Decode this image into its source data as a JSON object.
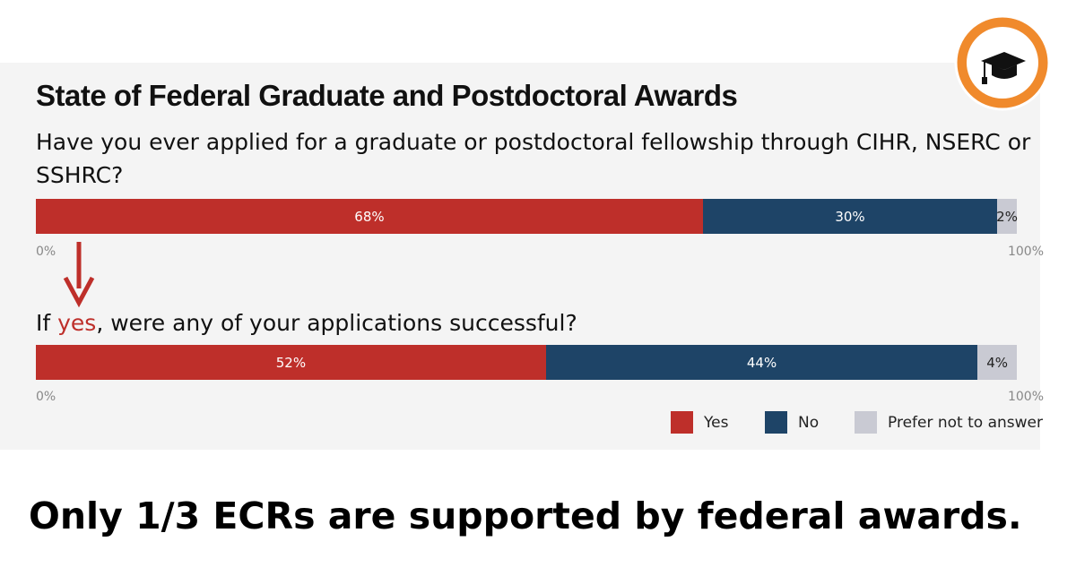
{
  "title": "State of Federal Graduate and Postdoctoral Awards",
  "caption": "Only 1/3 ECRs are supported by federal awards.",
  "chart_data": [
    {
      "type": "stacked-bar",
      "question": [
        {
          "text": "Have you ever applied for a graduate or postdoctoral fellowship through CIHR, NSERC or SSHRC?"
        }
      ],
      "series": [
        {
          "color": "#be2f2a",
          "values": [
            68
          ],
          "value_labels": [
            "68%"
          ]
        },
        {
          "color": "#1e4467",
          "values": [
            30
          ],
          "value_labels": [
            "30%"
          ]
        },
        {
          "color": "#c9cad3",
          "values": [
            2
          ],
          "value_labels": [
            "2%"
          ]
        }
      ],
      "xlim": [
        0,
        100
      ],
      "xticks": [
        {
          "value": 0,
          "label": "0%"
        },
        {
          "value": 100,
          "label": "100%"
        }
      ]
    },
    {
      "type": "stacked-bar",
      "question": [
        {
          "text": "If "
        },
        {
          "text": "yes",
          "color": "#be2f2a"
        },
        {
          "text": ", were any of your applications successful?"
        }
      ],
      "series": [
        {
          "name": "Yes",
          "color": "#be2f2a",
          "values": [
            52
          ],
          "value_labels": [
            "52%"
          ]
        },
        {
          "name": "No",
          "color": "#1e4467",
          "values": [
            44
          ],
          "value_labels": [
            "44%"
          ]
        },
        {
          "name": "Prefer not to answer",
          "color": "#c9cad3",
          "values": [
            4
          ],
          "value_labels": [
            "4%"
          ]
        }
      ],
      "xlim": [
        0,
        100
      ],
      "xticks": [
        {
          "value": 0,
          "label": "0%"
        },
        {
          "value": 100,
          "label": "100%"
        }
      ],
      "legend": "bottom-right"
    }
  ]
}
